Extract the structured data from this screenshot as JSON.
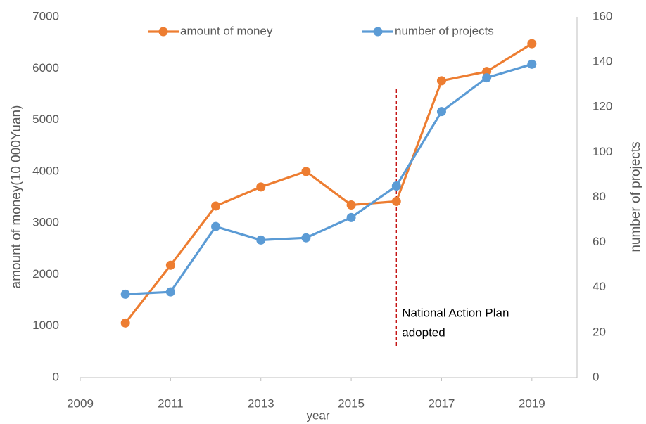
{
  "chart_data": {
    "type": "line",
    "x_label": "year",
    "y_label": "amount of money(10 000Yuan)",
    "y2_label": "number of projects",
    "x": [
      2010,
      2011,
      2012,
      2013,
      2014,
      2015,
      2016,
      2017,
      2018,
      2019
    ],
    "series": [
      {
        "name": "amount of money",
        "color": "#ed7d31",
        "values": [
          1060,
          2180,
          3330,
          3700,
          4000,
          3350,
          3420,
          5760,
          5940,
          6480
        ]
      },
      {
        "name": "number of projects",
        "color": "#5b9bd5",
        "axis": "y2",
        "values": [
          37,
          38,
          67,
          61,
          62,
          71,
          85,
          118,
          133,
          139
        ]
      }
    ],
    "xlim": [
      2009,
      2020
    ],
    "xticks": [
      2009,
      2011,
      2013,
      2015,
      2017,
      2019
    ],
    "ylim": [
      0,
      7000
    ],
    "yticks": [
      0,
      1000,
      2000,
      3000,
      4000,
      5000,
      6000,
      7000
    ],
    "y2lim": [
      0,
      160
    ],
    "y2ticks": [
      0,
      20,
      40,
      60,
      80,
      100,
      120,
      140,
      160
    ],
    "reference_line": {
      "x": 2016,
      "color": "#c00000",
      "label": [
        "National Action Plan",
        "adopted"
      ]
    },
    "legend": "top",
    "grid": false
  }
}
